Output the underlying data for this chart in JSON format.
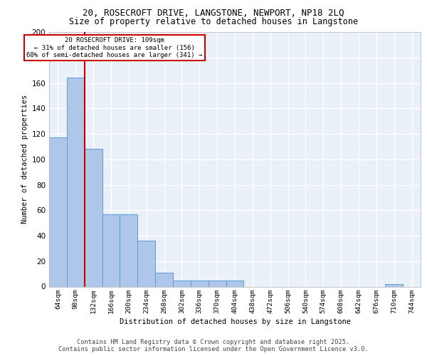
{
  "title_line1": "20, ROSECROFT DRIVE, LANGSTONE, NEWPORT, NP18 2LQ",
  "title_line2": "Size of property relative to detached houses in Langstone",
  "xlabel": "Distribution of detached houses by size in Langstone",
  "ylabel": "Number of detached properties",
  "categories": [
    "64sqm",
    "98sqm",
    "132sqm",
    "166sqm",
    "200sqm",
    "234sqm",
    "268sqm",
    "302sqm",
    "336sqm",
    "370sqm",
    "404sqm",
    "438sqm",
    "472sqm",
    "506sqm",
    "540sqm",
    "574sqm",
    "608sqm",
    "642sqm",
    "676sqm",
    "710sqm",
    "744sqm"
  ],
  "values": [
    117,
    164,
    108,
    57,
    57,
    36,
    11,
    5,
    5,
    5,
    5,
    0,
    0,
    0,
    0,
    0,
    0,
    0,
    0,
    2,
    0
  ],
  "bar_color": "#aec6e8",
  "bar_edge_color": "#5b9bd5",
  "bg_color": "#eaf0f8",
  "grid_color": "#ffffff",
  "red_line_color": "#cc0000",
  "annotation_text": "20 ROSECROFT DRIVE: 109sqm\n← 31% of detached houses are smaller (156)\n68% of semi-detached houses are larger (341) →",
  "annotation_box_color": "#cc0000",
  "footer_line1": "Contains HM Land Registry data © Crown copyright and database right 2025.",
  "footer_line2": "Contains public sector information licensed under the Open Government Licence v3.0.",
  "ylim": [
    0,
    200
  ],
  "yticks": [
    0,
    20,
    40,
    60,
    80,
    100,
    120,
    140,
    160,
    180,
    200
  ],
  "property_line_x": 1.5
}
